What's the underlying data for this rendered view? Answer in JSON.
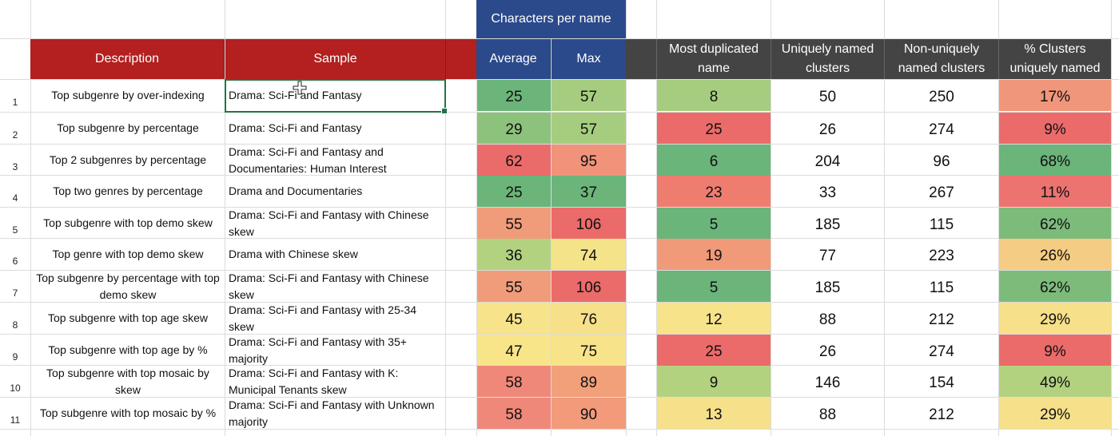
{
  "headers": {
    "group_label": "Characters per name",
    "description": "Description",
    "sample": "Sample",
    "average": "Average",
    "max": "Max",
    "most_duplicated_line1": "Most duplicated",
    "most_duplicated_line2": "name",
    "uniquely_line1": "Uniquely named",
    "uniquely_line2": "clusters",
    "nonunique_line1": "Non-uniquely",
    "nonunique_line2": "named clusters",
    "pct_line1": "% Clusters",
    "pct_line2": "uniquely named"
  },
  "colors": {
    "header_red": "#b3201f",
    "header_blue": "#2a4a8b",
    "header_dark": "#444444",
    "selection": "#217346"
  },
  "rows": [
    {
      "num": "1",
      "description": "Top subgenre by over-indexing",
      "sample": "Drama: Sci-Fi and Fantasy",
      "average": "25",
      "average_color": "#6bb47a",
      "max": "57",
      "max_color": "#a6cd7f",
      "dup": "8",
      "dup_color": "#a6cd7f",
      "unique": "50",
      "nonunique": "250",
      "pct": "17%",
      "pct_color": "#f0967a"
    },
    {
      "num": "2",
      "description": "Top subgenre by percentage",
      "sample": "Drama: Sci-Fi and Fantasy",
      "average": "29",
      "average_color": "#8dc27c",
      "max": "57",
      "max_color": "#a6cd7f",
      "dup": "25",
      "dup_color": "#eb6b6a",
      "unique": "26",
      "nonunique": "274",
      "pct": "9%",
      "pct_color": "#eb6b6a"
    },
    {
      "num": "3",
      "description": "Top 2 subgenres by percentage",
      "sample": "Drama: Sci-Fi and Fantasy and Documentaries: Human Interest",
      "average": "62",
      "average_color": "#eb6b6a",
      "max": "95",
      "max_color": "#f0937a",
      "dup": "6",
      "dup_color": "#6bb47a",
      "unique": "204",
      "nonunique": "96",
      "pct": "68%",
      "pct_color": "#6bb47a"
    },
    {
      "num": "4",
      "description": "Top two genres by percentage",
      "sample": "Drama and Documentaries",
      "average": "25",
      "average_color": "#6bb47a",
      "max": "37",
      "max_color": "#6bb47a",
      "dup": "23",
      "dup_color": "#ee7d70",
      "unique": "33",
      "nonunique": "267",
      "pct": "11%",
      "pct_color": "#ec7370"
    },
    {
      "num": "5",
      "description": "Top subgenre with top demo skew",
      "sample": "Drama: Sci-Fi and Fantasy with Chinese skew",
      "average": "55",
      "average_color": "#f09c7a",
      "max": "106",
      "max_color": "#eb6b6a",
      "dup": "5",
      "dup_color": "#6bb47a",
      "unique": "185",
      "nonunique": "115",
      "pct": "62%",
      "pct_color": "#7dbb7b"
    },
    {
      "num": "6",
      "description": "Top genre with top demo skew",
      "sample": "Drama with Chinese skew",
      "average": "36",
      "average_color": "#b3d280",
      "max": "74",
      "max_color": "#f5e389",
      "dup": "19",
      "dup_color": "#f09a7a",
      "unique": "77",
      "nonunique": "223",
      "pct": "26%",
      "pct_color": "#f5cc83"
    },
    {
      "num": "7",
      "description": "Top subgenre by percentage with top demo skew",
      "sample": "Drama: Sci-Fi and Fantasy with Chinese skew",
      "average": "55",
      "average_color": "#f09c7a",
      "max": "106",
      "max_color": "#eb6b6a",
      "dup": "5",
      "dup_color": "#6bb47a",
      "unique": "185",
      "nonunique": "115",
      "pct": "62%",
      "pct_color": "#7dbb7b"
    },
    {
      "num": "8",
      "description": "Top subgenre with top age skew",
      "sample": "Drama: Sci-Fi and Fantasy with 25-34 skew",
      "average": "45",
      "average_color": "#f7e38a",
      "max": "76",
      "max_color": "#f7e08a",
      "dup": "12",
      "dup_color": "#f7e38a",
      "unique": "88",
      "nonunique": "212",
      "pct": "29%",
      "pct_color": "#f7e08a"
    },
    {
      "num": "9",
      "description": "Top subgenre with top age by %",
      "sample": "Drama: Sci-Fi and Fantasy with 35+ majority",
      "average": "47",
      "average_color": "#f9e589",
      "max": "75",
      "max_color": "#f7e38a",
      "dup": "25",
      "dup_color": "#eb6b6a",
      "unique": "26",
      "nonunique": "274",
      "pct": "9%",
      "pct_color": "#eb6b6a"
    },
    {
      "num": "10",
      "description": "Top subgenre with top mosaic by skew",
      "sample": "Drama: Sci-Fi and Fantasy with K: Municipal Tenants skew",
      "average": "58",
      "average_color": "#f0887a",
      "max": "89",
      "max_color": "#f2a07a",
      "dup": "9",
      "dup_color": "#b3d280",
      "unique": "146",
      "nonunique": "154",
      "pct": "49%",
      "pct_color": "#b3d280"
    },
    {
      "num": "11",
      "description": "Top subgenre with top mosaic by %",
      "sample": "Drama: Sci-Fi and Fantasy with Unknown majority",
      "average": "58",
      "average_color": "#f0887a",
      "max": "90",
      "max_color": "#f29a7a",
      "dup": "13",
      "dup_color": "#f7e08a",
      "unique": "88",
      "nonunique": "212",
      "pct": "29%",
      "pct_color": "#f7e08a"
    }
  ]
}
